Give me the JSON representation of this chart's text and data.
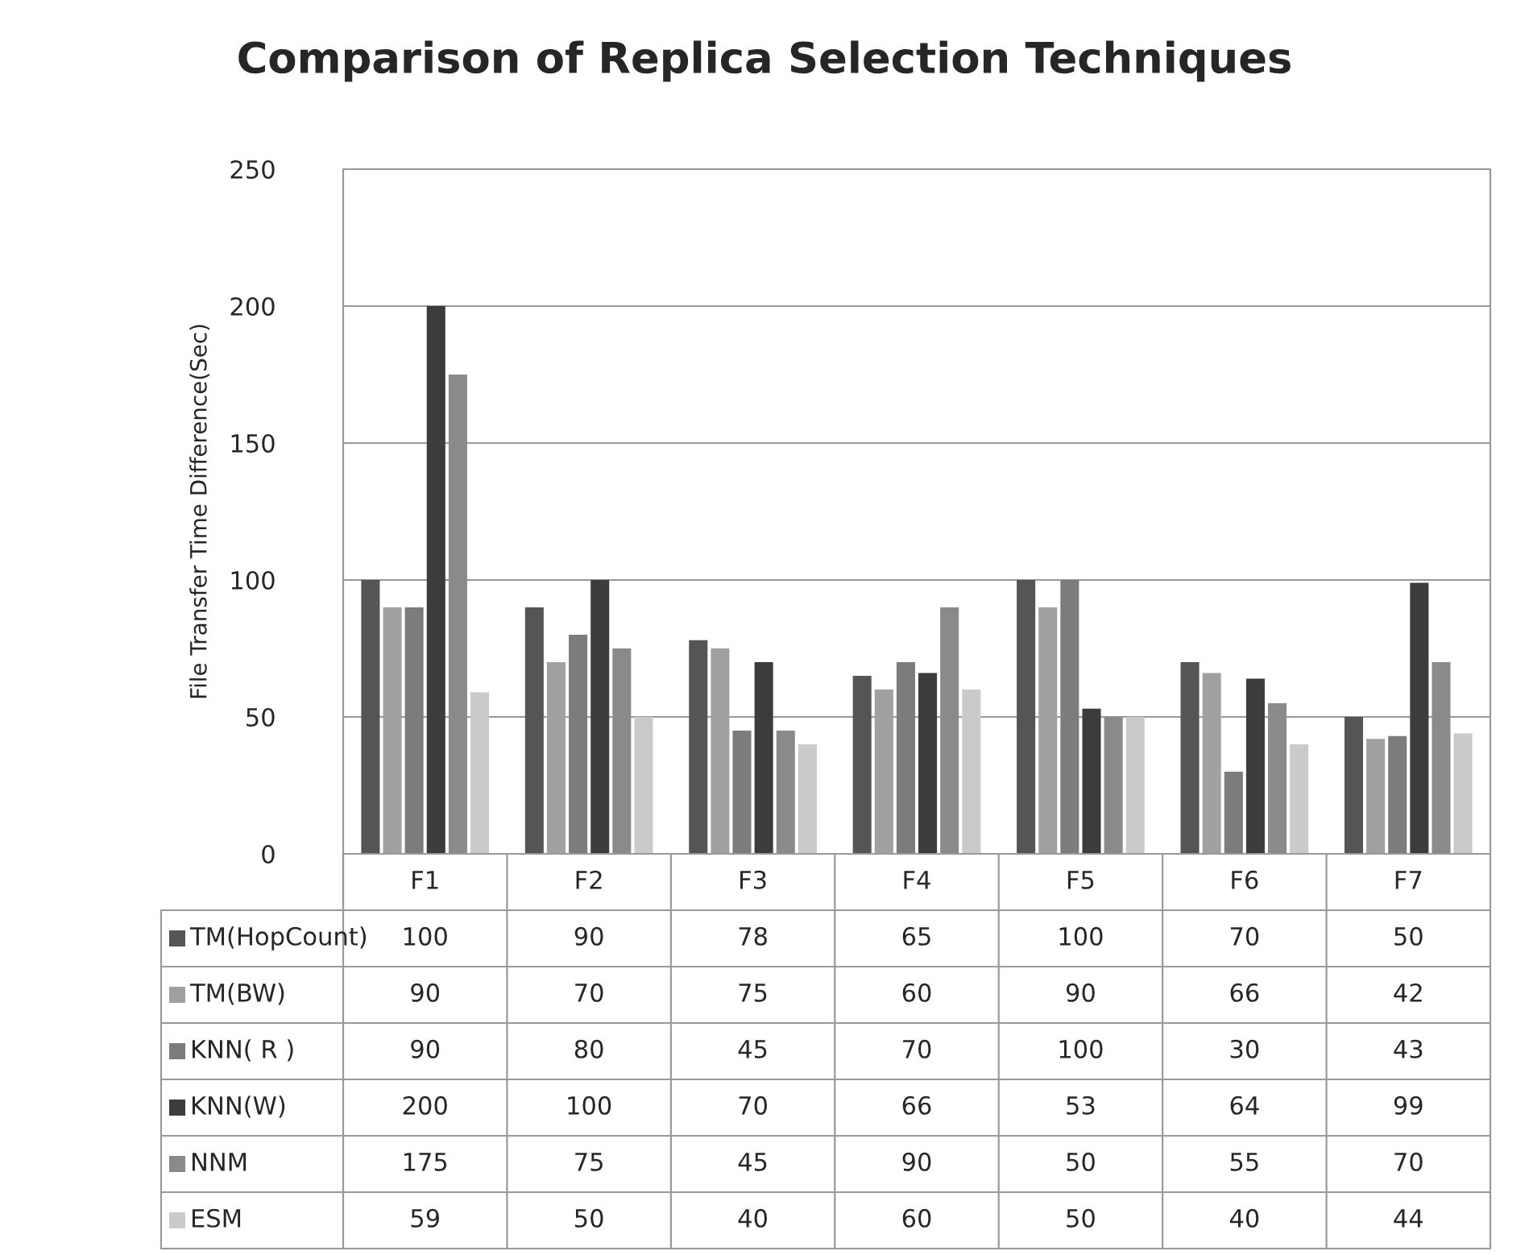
{
  "chart_data": {
    "type": "bar",
    "title": "Comparison of Replica Selection Techniques",
    "ylabel": "File Transfer Time Difference(Sec)",
    "categories": [
      "F1",
      "F2",
      "F3",
      "F4",
      "F5",
      "F6",
      "F7"
    ],
    "series": [
      {
        "name": "TM(HopCount)",
        "color": "#555555",
        "values": [
          100,
          90,
          78,
          65,
          100,
          70,
          50
        ]
      },
      {
        "name": "TM(BW)",
        "color": "#a0a0a0",
        "values": [
          90,
          70,
          75,
          60,
          90,
          66,
          42
        ]
      },
      {
        "name": "KNN( R )",
        "color": "#7c7c7c",
        "values": [
          90,
          80,
          45,
          70,
          100,
          30,
          43
        ]
      },
      {
        "name": "KNN(W)",
        "color": "#3c3c3c",
        "values": [
          200,
          100,
          70,
          66,
          53,
          64,
          99
        ]
      },
      {
        "name": "NNM",
        "color": "#8a8a8a",
        "values": [
          175,
          75,
          45,
          90,
          50,
          55,
          70
        ]
      },
      {
        "name": "ESM",
        "color": "#cacaca",
        "values": [
          59,
          50,
          40,
          60,
          50,
          40,
          44
        ]
      }
    ],
    "ylim": [
      0,
      250
    ],
    "yticks": [
      0,
      50,
      100,
      150,
      200,
      250
    ],
    "grid": "y",
    "legend": "bottom",
    "data_labels": true
  }
}
